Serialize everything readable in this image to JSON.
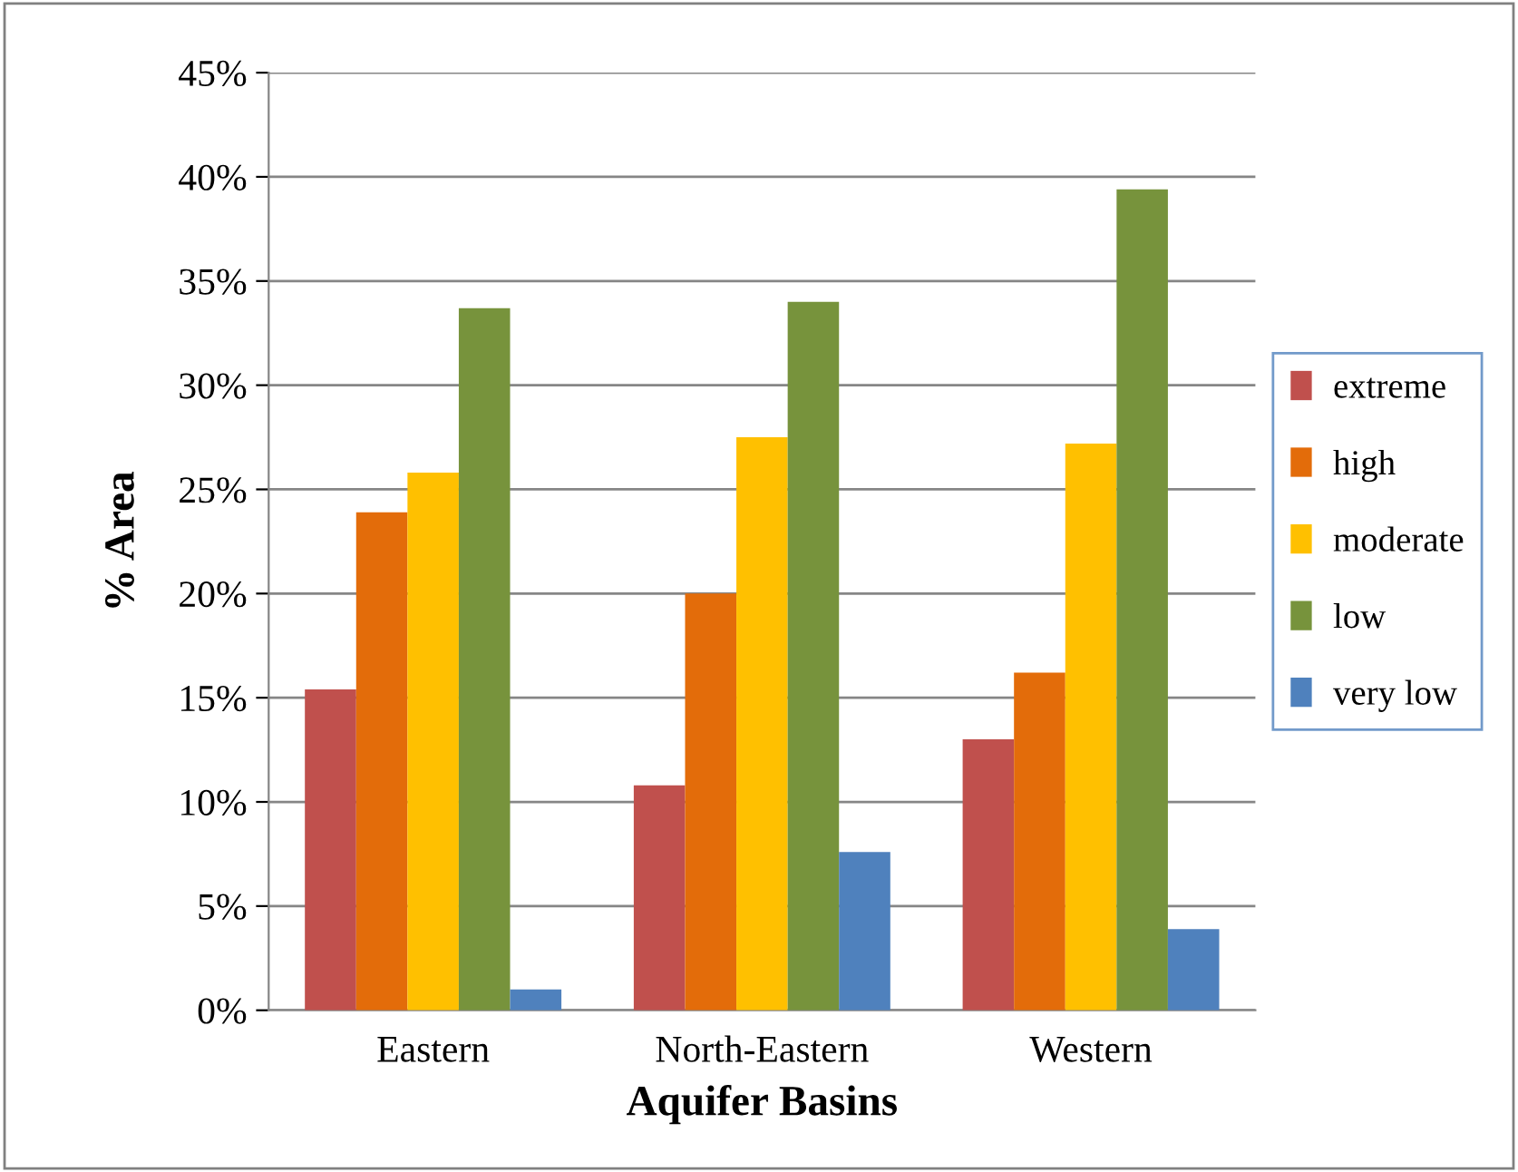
{
  "chart_data": {
    "type": "bar",
    "xlabel": "Aquifer Basins",
    "ylabel": "% Area",
    "categories": [
      "Eastern",
      "North-Eastern",
      "Western"
    ],
    "series": [
      {
        "name": "extreme",
        "color": "#c0504d",
        "values": [
          15.4,
          10.8,
          13.0
        ]
      },
      {
        "name": "high",
        "color": "#e36c0a",
        "values": [
          23.9,
          20.0,
          16.2
        ]
      },
      {
        "name": "moderate",
        "color": "#ffc000",
        "values": [
          25.8,
          27.5,
          27.2
        ]
      },
      {
        "name": "low",
        "color": "#77933c",
        "values": [
          33.7,
          34.0,
          39.4
        ]
      },
      {
        "name": "very low",
        "color": "#4f81bd",
        "values": [
          1.0,
          7.6,
          3.9
        ]
      }
    ],
    "ylim": [
      0,
      45
    ],
    "yticks": [
      {
        "value": 0,
        "label": "0%"
      },
      {
        "value": 5,
        "label": "5%"
      },
      {
        "value": 10,
        "label": "10%"
      },
      {
        "value": 15,
        "label": "15%"
      },
      {
        "value": 20,
        "label": "20%"
      },
      {
        "value": 25,
        "label": "25%"
      },
      {
        "value": 30,
        "label": "30%"
      },
      {
        "value": 35,
        "label": "35%"
      },
      {
        "value": 40,
        "label": "40%"
      },
      {
        "value": 45,
        "label": "45%"
      }
    ],
    "grid": "y",
    "legend": "right"
  }
}
